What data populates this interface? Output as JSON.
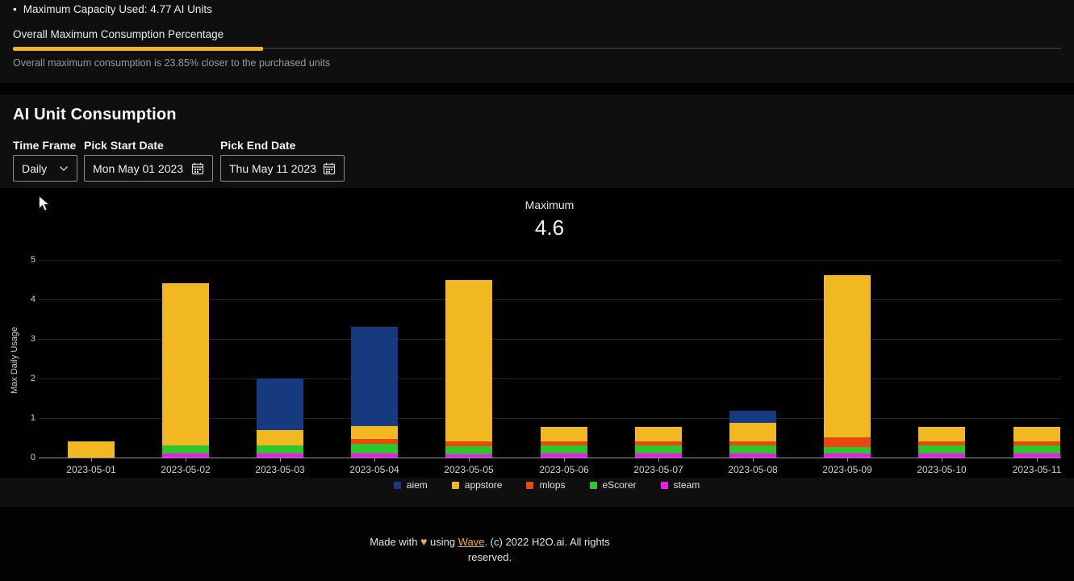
{
  "colors": {
    "accent": "#F0B429",
    "card_bg": "#0f0f10",
    "plot_bg": "#010102",
    "page_bg": "#030304"
  },
  "top_panel": {
    "bullet": "•",
    "capacity_item": "Maximum Capacity Used: 4.77 AI Units",
    "section_label": "Overall Maximum Consumption Percentage",
    "progress_percent": 23.85,
    "caption": "Overall maximum consumption is 23.85% closer to the purchased units"
  },
  "consumption_card": {
    "title": "AI Unit Consumption",
    "controls": {
      "time_frame": {
        "label": "Time Frame",
        "value": "Daily"
      },
      "start_date": {
        "label": "Pick Start Date",
        "value": "Mon May 01 2023"
      },
      "end_date": {
        "label": "Pick End Date",
        "value": "Thu May 11 2023"
      }
    },
    "stat": {
      "label": "Maximum",
      "value": "4.6"
    }
  },
  "chart_data": {
    "type": "bar",
    "stacked": true,
    "ylabel": "Max Daily Usage",
    "ylim": [
      0,
      5
    ],
    "yticks": [
      0,
      1,
      2,
      3,
      4,
      5
    ],
    "grid": true,
    "legend_position": "bottom",
    "categories": [
      "2023-05-01",
      "2023-05-02",
      "2023-05-03",
      "2023-05-04",
      "2023-05-05",
      "2023-05-06",
      "2023-05-07",
      "2023-05-08",
      "2023-05-09",
      "2023-05-10",
      "2023-05-11"
    ],
    "series": [
      {
        "name": "steam",
        "color": "#EB1BEB",
        "values": [
          0,
          0.1,
          0.1,
          0.1,
          0.08,
          0.1,
          0.1,
          0.1,
          0.1,
          0.1,
          0.1
        ]
      },
      {
        "name": "eScorer",
        "color": "#2FC52F",
        "values": [
          0,
          0.2,
          0.2,
          0.25,
          0.2,
          0.2,
          0.2,
          0.2,
          0.17,
          0.2,
          0.2
        ]
      },
      {
        "name": "mlops",
        "color": "#E8490F",
        "values": [
          0,
          0,
          0,
          0.12,
          0.12,
          0.1,
          0.1,
          0.1,
          0.24,
          0.1,
          0.1
        ]
      },
      {
        "name": "appstore",
        "color": "#F2B822",
        "values": [
          0.4,
          4.1,
          0.4,
          0.33,
          4.1,
          0.38,
          0.38,
          0.48,
          4.1,
          0.38,
          0.38
        ]
      },
      {
        "name": "aiem",
        "color": "#16397F",
        "values": [
          0,
          0,
          1.3,
          2.5,
          0,
          0,
          0,
          0.31,
          0,
          0,
          0
        ]
      }
    ],
    "legend_order": [
      "aiem",
      "appstore",
      "mlops",
      "eScorer",
      "steam"
    ]
  },
  "footer": {
    "prefix": "Made with",
    "heart": "♥",
    "middle": "using",
    "link": "Wave",
    "suffix": ". (c) 2022 H2O.ai. All rights reserved."
  }
}
